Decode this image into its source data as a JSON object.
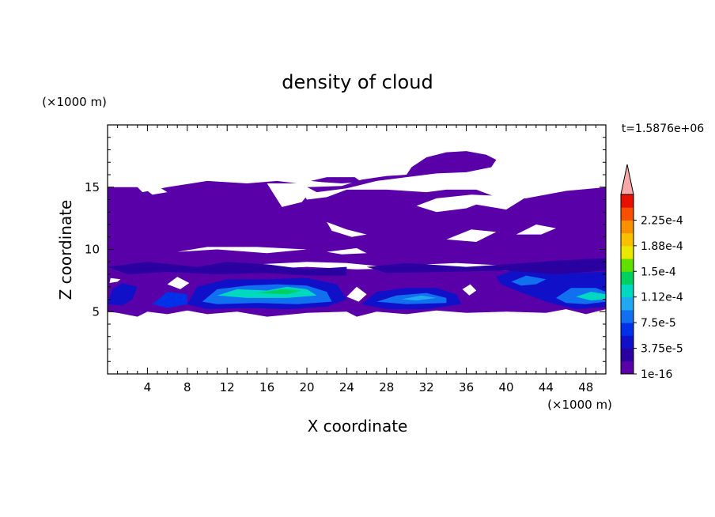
{
  "chart_data": {
    "type": "heatmap",
    "title": "density of cloud",
    "xlabel": "X coordinate",
    "ylabel": "Z coordinate",
    "x_unit": "(×1000 m)",
    "y_unit": "(×1000 m)",
    "time_label": "t=1.5876e+06",
    "xlim": [
      0,
      50
    ],
    "ylim": [
      0,
      20
    ],
    "x_ticks": [
      4,
      8,
      12,
      16,
      20,
      24,
      28,
      32,
      36,
      40,
      44,
      48
    ],
    "y_ticks": [
      5,
      10,
      15
    ],
    "colorbar": {
      "levels": [
        1e-16,
        1.875e-05,
        3.75e-05,
        5.625e-05,
        7.5e-05,
        9.375e-05,
        0.0001125,
        0.00013125,
        0.00015,
        0.00016875,
        0.0001875,
        0.00020625,
        0.000225,
        0.00024375
      ],
      "labels": [
        "1e-16",
        "3.75e-5",
        "7.5e-5",
        "1.12e-4",
        "1.5e-4",
        "1.88e-4",
        "2.25e-4"
      ],
      "label_levels": [
        1e-16,
        3.75e-05,
        7.5e-05,
        0.0001125,
        0.00015,
        0.0001875,
        0.000225
      ],
      "colors": [
        "#5a00a8",
        "#2a00a0",
        "#1010c8",
        "#0030e8",
        "#1070f0",
        "#20a8f0",
        "#00d8c0",
        "#00d060",
        "#60e000",
        "#e8e800",
        "#f8c000",
        "#f89000",
        "#f85000",
        "#e81000"
      ],
      "extend_color": "#f8a8a8"
    },
    "regions": [
      {
        "name": "upper-stratiform",
        "level_index": 0,
        "outline": [
          [
            0,
            15
          ],
          [
            3,
            15
          ],
          [
            3.5,
            14.6
          ],
          [
            6,
            15
          ],
          [
            10,
            15.5
          ],
          [
            14,
            15.3
          ],
          [
            17,
            15.5
          ],
          [
            19,
            15.3
          ],
          [
            20,
            14
          ],
          [
            22,
            14.2
          ],
          [
            24,
            14.8
          ],
          [
            28,
            14.8
          ],
          [
            32,
            14.6
          ],
          [
            34,
            14.8
          ],
          [
            37,
            14.8
          ],
          [
            39,
            14.2
          ],
          [
            42,
            14.1
          ],
          [
            46,
            14.7
          ],
          [
            50,
            15
          ],
          [
            50,
            8.8
          ],
          [
            47,
            8.6
          ],
          [
            44,
            8.5
          ],
          [
            40,
            8.7
          ],
          [
            35,
            8.9
          ],
          [
            32,
            8.8
          ],
          [
            28,
            8.6
          ],
          [
            24,
            8.9
          ],
          [
            20,
            9
          ],
          [
            15,
            8.8
          ],
          [
            10,
            8.5
          ],
          [
            6,
            8.6
          ],
          [
            3,
            8.5
          ],
          [
            0,
            8.6
          ]
        ]
      },
      {
        "name": "upper-anvil",
        "level_index": 0,
        "outline": [
          [
            20,
            15
          ],
          [
            23.5,
            15.1
          ],
          [
            25.5,
            15.6
          ],
          [
            28,
            15.9
          ],
          [
            30,
            16
          ],
          [
            30.5,
            16.6
          ],
          [
            32,
            17.4
          ],
          [
            34,
            17.8
          ],
          [
            36,
            17.9
          ],
          [
            38,
            17.6
          ],
          [
            39,
            17.2
          ],
          [
            38.5,
            16.6
          ],
          [
            36,
            16.2
          ],
          [
            33,
            16.1
          ],
          [
            30,
            15.8
          ],
          [
            27,
            15.5
          ],
          [
            24,
            14.9
          ],
          [
            21,
            14.6
          ]
        ]
      },
      {
        "name": "upper-anvil-wisp",
        "level_index": 0,
        "outline": [
          [
            20.4,
            15.5
          ],
          [
            22,
            15.8
          ],
          [
            24.8,
            15.8
          ],
          [
            25.5,
            15.4
          ],
          [
            23.5,
            15.3
          ],
          [
            21.5,
            15.4
          ]
        ]
      },
      {
        "name": "mid-layer",
        "level_index": 0,
        "outline": [
          [
            0,
            9
          ],
          [
            5,
            8.8
          ],
          [
            10,
            8.3
          ],
          [
            15,
            8.4
          ],
          [
            20,
            8.6
          ],
          [
            25,
            8.4
          ],
          [
            30,
            8.5
          ],
          [
            35,
            8.4
          ],
          [
            40,
            8.3
          ],
          [
            45,
            8.5
          ],
          [
            50,
            8.8
          ],
          [
            50,
            5.2
          ],
          [
            48,
            4.8
          ],
          [
            46,
            5.2
          ],
          [
            44,
            4.9
          ],
          [
            40,
            5
          ],
          [
            36,
            4.9
          ],
          [
            33,
            5.1
          ],
          [
            30,
            4.8
          ],
          [
            27,
            5
          ],
          [
            25,
            4.6
          ],
          [
            24,
            5
          ],
          [
            20,
            4.9
          ],
          [
            16,
            4.6
          ],
          [
            13,
            5
          ],
          [
            10,
            4.8
          ],
          [
            8,
            5.1
          ],
          [
            6,
            4.8
          ],
          [
            4,
            5
          ],
          [
            3,
            4.6
          ],
          [
            1,
            4.9
          ],
          [
            0,
            5
          ]
        ]
      },
      {
        "name": "core-left",
        "level_index": 2,
        "outline": [
          [
            8,
            5.6
          ],
          [
            9,
            7
          ],
          [
            12,
            7.6
          ],
          [
            16,
            7.6
          ],
          [
            20,
            7.7
          ],
          [
            23,
            7.2
          ],
          [
            24,
            6
          ],
          [
            22,
            5.4
          ],
          [
            18,
            5.2
          ],
          [
            14,
            5.3
          ],
          [
            10,
            5.2
          ]
        ]
      },
      {
        "name": "core-left-inner",
        "level_index": 4,
        "outline": [
          [
            9.5,
            5.8
          ],
          [
            11,
            6.8
          ],
          [
            14,
            7.1
          ],
          [
            17,
            7.2
          ],
          [
            20,
            7.1
          ],
          [
            22,
            6.6
          ],
          [
            22.5,
            5.8
          ],
          [
            19,
            5.6
          ],
          [
            15,
            5.7
          ],
          [
            11,
            5.6
          ]
        ]
      },
      {
        "name": "core-left-peak",
        "level_index": 6,
        "outline": [
          [
            11,
            6.3
          ],
          [
            13,
            6.8
          ],
          [
            16,
            6.7
          ],
          [
            18,
            7
          ],
          [
            20,
            6.8
          ],
          [
            21,
            6.3
          ],
          [
            18,
            6.1
          ],
          [
            14,
            6.1
          ]
        ]
      },
      {
        "name": "core-left-max",
        "level_index": 7,
        "outline": [
          [
            15,
            6.5
          ],
          [
            17.5,
            6.8
          ],
          [
            19.5,
            6.7
          ],
          [
            18,
            6.4
          ]
        ]
      },
      {
        "name": "core-center",
        "level_index": 2,
        "outline": [
          [
            25.5,
            5.6
          ],
          [
            27,
            6.6
          ],
          [
            30,
            6.9
          ],
          [
            33,
            6.9
          ],
          [
            35,
            6.4
          ],
          [
            35.5,
            5.6
          ],
          [
            32,
            5.2
          ],
          [
            28,
            5.2
          ]
        ]
      },
      {
        "name": "core-center-inner",
        "level_index": 4,
        "outline": [
          [
            27,
            5.8
          ],
          [
            29,
            6.3
          ],
          [
            32,
            6.5
          ],
          [
            34,
            6.1
          ],
          [
            34,
            5.7
          ],
          [
            30,
            5.6
          ]
        ]
      },
      {
        "name": "core-center-peak",
        "level_index": 5,
        "outline": [
          [
            29.5,
            6
          ],
          [
            31.5,
            6.3
          ],
          [
            33,
            6.1
          ],
          [
            31,
            5.9
          ]
        ]
      },
      {
        "name": "core-far-left",
        "level_index": 2,
        "outline": [
          [
            0,
            5.6
          ],
          [
            0.5,
            6.8
          ],
          [
            1.5,
            7.3
          ],
          [
            3,
            7
          ],
          [
            2.5,
            6
          ],
          [
            1.5,
            5.5
          ]
        ]
      },
      {
        "name": "core-left-sub",
        "level_index": 3,
        "outline": [
          [
            4.5,
            5.6
          ],
          [
            6,
            6.6
          ],
          [
            8,
            6.4
          ],
          [
            8,
            5.6
          ],
          [
            6,
            5.3
          ]
        ]
      },
      {
        "name": "core-right",
        "level_index": 2,
        "outline": [
          [
            39,
            7.8
          ],
          [
            41,
            8.4
          ],
          [
            44,
            8.4
          ],
          [
            47,
            8.1
          ],
          [
            50,
            8.2
          ],
          [
            50,
            5.4
          ],
          [
            47,
            5.2
          ],
          [
            44,
            5.8
          ],
          [
            41,
            6.7
          ],
          [
            39.5,
            7.2
          ]
        ]
      },
      {
        "name": "core-right-inner",
        "level_index": 4,
        "outline": [
          [
            40.5,
            7.4
          ],
          [
            42,
            7.9
          ],
          [
            44,
            7.6
          ],
          [
            43,
            7.2
          ],
          [
            41.5,
            7.1
          ]
        ]
      },
      {
        "name": "core-right-edge",
        "level_index": 4,
        "outline": [
          [
            45,
            6.1
          ],
          [
            46.5,
            6.9
          ],
          [
            49,
            6.9
          ],
          [
            50,
            6.6
          ],
          [
            50,
            5.8
          ],
          [
            48,
            5.6
          ],
          [
            46,
            5.7
          ]
        ]
      },
      {
        "name": "core-right-edge-peak",
        "level_index": 6,
        "outline": [
          [
            47,
            6.2
          ],
          [
            48.5,
            6.6
          ],
          [
            50,
            6.4
          ],
          [
            50,
            6
          ],
          [
            48.5,
            5.9
          ]
        ]
      },
      {
        "name": "mid-band-left",
        "level_index": 1,
        "outline": [
          [
            0,
            8.6
          ],
          [
            4,
            9
          ],
          [
            9,
            8.6
          ],
          [
            12,
            9
          ],
          [
            16,
            8.8
          ],
          [
            20,
            8.4
          ],
          [
            24,
            8.6
          ],
          [
            24,
            7.9
          ],
          [
            20,
            7.9
          ],
          [
            16,
            8.1
          ],
          [
            11,
            8
          ],
          [
            6,
            8.2
          ],
          [
            2,
            8
          ]
        ]
      },
      {
        "name": "mid-band-right",
        "level_index": 1,
        "outline": [
          [
            26,
            8.6
          ],
          [
            30,
            8.9
          ],
          [
            36,
            8.6
          ],
          [
            40,
            8.8
          ],
          [
            45,
            9.1
          ],
          [
            50,
            9.3
          ],
          [
            50,
            8.3
          ],
          [
            45,
            8
          ],
          [
            40,
            8.3
          ],
          [
            34,
            8.2
          ],
          [
            28,
            8.1
          ]
        ]
      }
    ],
    "holes": [
      {
        "name": "gap-top-left",
        "outline": [
          [
            3.5,
            15
          ],
          [
            4.5,
            14.4
          ],
          [
            6,
            14.6
          ],
          [
            5,
            15.1
          ]
        ]
      },
      {
        "name": "gap-center-top",
        "outline": [
          [
            16,
            15.3
          ],
          [
            17.5,
            13.4
          ],
          [
            19.5,
            13.8
          ],
          [
            20.5,
            14.8
          ],
          [
            19.3,
            15.3
          ]
        ]
      },
      {
        "name": "gap-right-top",
        "outline": [
          [
            42,
            14.2
          ],
          [
            40,
            13.2
          ],
          [
            37,
            13.6
          ],
          [
            36,
            13.3
          ],
          [
            33,
            13
          ],
          [
            31,
            13.5
          ],
          [
            33,
            14.1
          ],
          [
            36.5,
            14.4
          ]
        ]
      },
      {
        "name": "gap-upper-mid-1",
        "outline": [
          [
            7,
            9.8
          ],
          [
            11,
            10
          ],
          [
            16,
            9.7
          ],
          [
            20,
            10
          ],
          [
            15,
            10.2
          ],
          [
            10,
            10.2
          ]
        ]
      },
      {
        "name": "gap-upper-mid-2",
        "outline": [
          [
            22,
            9.8
          ],
          [
            25,
            10.1
          ],
          [
            26,
            9.7
          ],
          [
            23.5,
            9.6
          ]
        ]
      },
      {
        "name": "gap-right-mid",
        "outline": [
          [
            34,
            10.8
          ],
          [
            36.5,
            11.6
          ],
          [
            39,
            11.4
          ],
          [
            37,
            10.6
          ]
        ]
      },
      {
        "name": "gap-right-mid-2",
        "outline": [
          [
            41,
            11.2
          ],
          [
            43,
            12
          ],
          [
            45,
            11.7
          ],
          [
            43.5,
            11.2
          ]
        ]
      },
      {
        "name": "gap-center-notch",
        "outline": [
          [
            22,
            12.2
          ],
          [
            24,
            11.6
          ],
          [
            26,
            11.2
          ],
          [
            24.5,
            11
          ],
          [
            22.5,
            11.5
          ]
        ]
      },
      {
        "name": "gap-left-core",
        "outline": [
          [
            0.3,
            7.7
          ],
          [
            1.3,
            7.6
          ],
          [
            1,
            7.4
          ],
          [
            0.2,
            7.3
          ]
        ]
      },
      {
        "name": "gap-mid-core-1",
        "outline": [
          [
            6,
            7.2
          ],
          [
            7,
            7.8
          ],
          [
            8.2,
            7.3
          ],
          [
            7.3,
            6.8
          ]
        ]
      },
      {
        "name": "gap-mid-core-2",
        "outline": [
          [
            24,
            6.2
          ],
          [
            25,
            7
          ],
          [
            26,
            6.4
          ],
          [
            25.2,
            5.8
          ]
        ]
      },
      {
        "name": "gap-mid-core-3",
        "outline": [
          [
            35.6,
            6.8
          ],
          [
            36.4,
            7.2
          ],
          [
            37,
            6.7
          ],
          [
            36.3,
            6.3
          ]
        ]
      }
    ]
  }
}
